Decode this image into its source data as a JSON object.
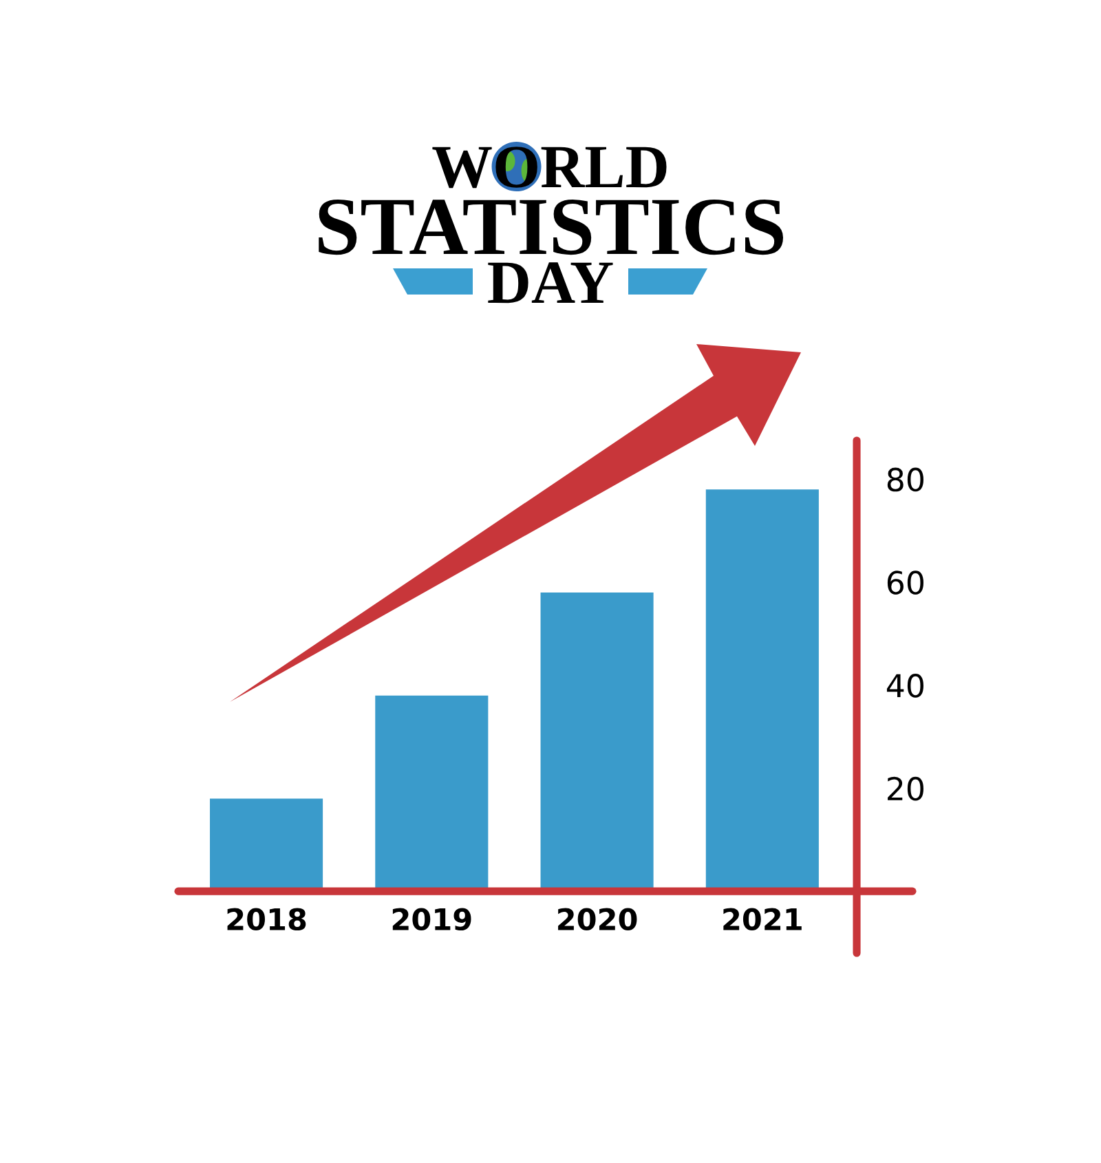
{
  "chart_data": {
    "type": "bar",
    "title": "WORLD\nSTATISTICS\nDAY",
    "categories": [
      "2018",
      "2019",
      "2020",
      "2021"
    ],
    "values": [
      18,
      38,
      58,
      78
    ],
    "color": "#3a9bcb",
    "ylim": [
      -12,
      87.5
    ],
    "yticks": [
      20,
      40,
      60,
      80
    ]
  }
}
